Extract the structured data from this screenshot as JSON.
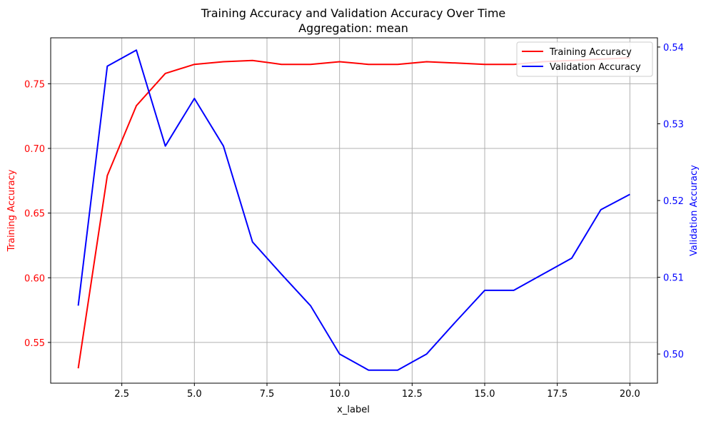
{
  "chart_data": {
    "type": "line",
    "title": "Training Accuracy and Validation Accuracy Over Time",
    "subtitle": "Aggregation: mean",
    "xlabel": "x_label",
    "ylabel_left": "Training Accuracy",
    "ylabel_right": "Validation Accuracy",
    "xlim": [
      0.05,
      20.95
    ],
    "ylim_left": [
      0.5185,
      0.7855
    ],
    "ylim_right": [
      0.4962,
      0.5412
    ],
    "x_ticks": [
      2.5,
      5.0,
      7.5,
      10.0,
      12.5,
      15.0,
      17.5,
      20.0
    ],
    "x_tick_labels": [
      "2.5",
      "5.0",
      "7.5",
      "10.0",
      "12.5",
      "15.0",
      "17.5",
      "20.0"
    ],
    "y_left_ticks": [
      0.55,
      0.6,
      0.65,
      0.7,
      0.75
    ],
    "y_left_tick_labels": [
      "0.55",
      "0.60",
      "0.65",
      "0.70",
      "0.75"
    ],
    "y_right_ticks": [
      0.5,
      0.51,
      0.52,
      0.53,
      0.54
    ],
    "y_right_tick_labels": [
      "0.50",
      "0.51",
      "0.52",
      "0.53",
      "0.54"
    ],
    "grid": true,
    "legend_position": "top-right",
    "x": [
      1,
      2,
      3,
      4,
      5,
      6,
      7,
      8,
      9,
      10,
      11,
      12,
      13,
      14,
      15,
      16,
      17,
      18,
      19,
      20
    ],
    "series": [
      {
        "name": "Training Accuracy",
        "axis": "left",
        "color": "#ff0000",
        "values": [
          0.53,
          0.679,
          0.733,
          0.758,
          0.765,
          0.767,
          0.768,
          0.765,
          0.765,
          0.767,
          0.765,
          0.765,
          0.767,
          0.766,
          0.765,
          0.765,
          0.767,
          0.768,
          0.769,
          0.77
        ]
      },
      {
        "name": "Validation Accuracy",
        "axis": "right",
        "color": "#0000ff",
        "values": [
          0.5063,
          0.5375,
          0.5396,
          0.5271,
          0.5333,
          0.5271,
          0.5146,
          0.5104,
          0.5063,
          0.5,
          0.4979,
          0.4979,
          0.5,
          0.5042,
          0.5083,
          0.5083,
          0.5104,
          0.5125,
          0.5188,
          0.5208
        ]
      }
    ]
  }
}
